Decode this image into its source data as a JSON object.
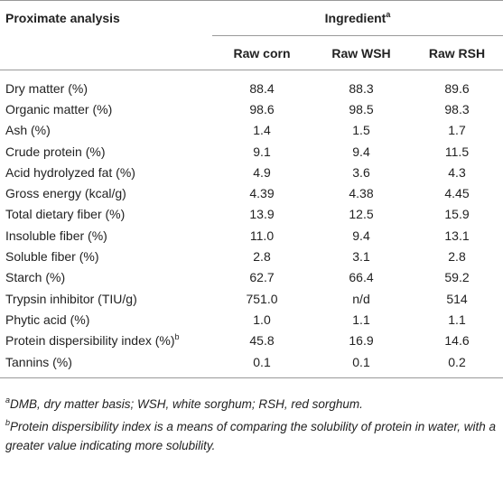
{
  "table": {
    "header": {
      "label": "Proximate analysis",
      "group": "Ingredient",
      "group_note": "a",
      "columns": [
        "Raw corn",
        "Raw WSH",
        "Raw RSH"
      ]
    },
    "rows": [
      {
        "label": "Dry matter (%)",
        "values": [
          "88.4",
          "88.3",
          "89.6"
        ]
      },
      {
        "label": "Organic matter (%)",
        "values": [
          "98.6",
          "98.5",
          "98.3"
        ]
      },
      {
        "label": "Ash (%)",
        "values": [
          "1.4",
          "1.5",
          "1.7"
        ]
      },
      {
        "label": "Crude protein (%)",
        "values": [
          "9.1",
          "9.4",
          "11.5"
        ]
      },
      {
        "label": "Acid hydrolyzed fat (%)",
        "values": [
          "4.9",
          "3.6",
          "4.3"
        ]
      },
      {
        "label": "Gross energy (kcal/g)",
        "values": [
          "4.39",
          "4.38",
          "4.45"
        ]
      },
      {
        "label": "Total dietary fiber (%)",
        "values": [
          "13.9",
          "12.5",
          "15.9"
        ]
      },
      {
        "label": "Insoluble fiber (%)",
        "values": [
          "11.0",
          "9.4",
          "13.1"
        ]
      },
      {
        "label": "Soluble fiber (%)",
        "values": [
          "2.8",
          "3.1",
          "2.8"
        ]
      },
      {
        "label": "Starch (%)",
        "values": [
          "62.7",
          "66.4",
          "59.2"
        ]
      },
      {
        "label": "Trypsin inhibitor (TIU/g)",
        "values": [
          "751.0",
          "n/d",
          "514"
        ]
      },
      {
        "label": "Phytic acid (%)",
        "values": [
          "1.0",
          "1.1",
          "1.1"
        ]
      },
      {
        "label": "Protein dispersibility index (%)",
        "note": "b",
        "values": [
          "45.8",
          "16.9",
          "14.6"
        ]
      },
      {
        "label": "Tannins (%)",
        "values": [
          "0.1",
          "0.1",
          "0.2"
        ]
      }
    ],
    "footnotes": [
      {
        "marker": "a",
        "text": "DMB, dry matter basis; WSH, white sorghum; RSH, red sorghum."
      },
      {
        "marker": "b",
        "text": "Protein dispersibility index is a means of comparing the solubility of protein in water, with a greater value indicating more solubility."
      }
    ]
  }
}
